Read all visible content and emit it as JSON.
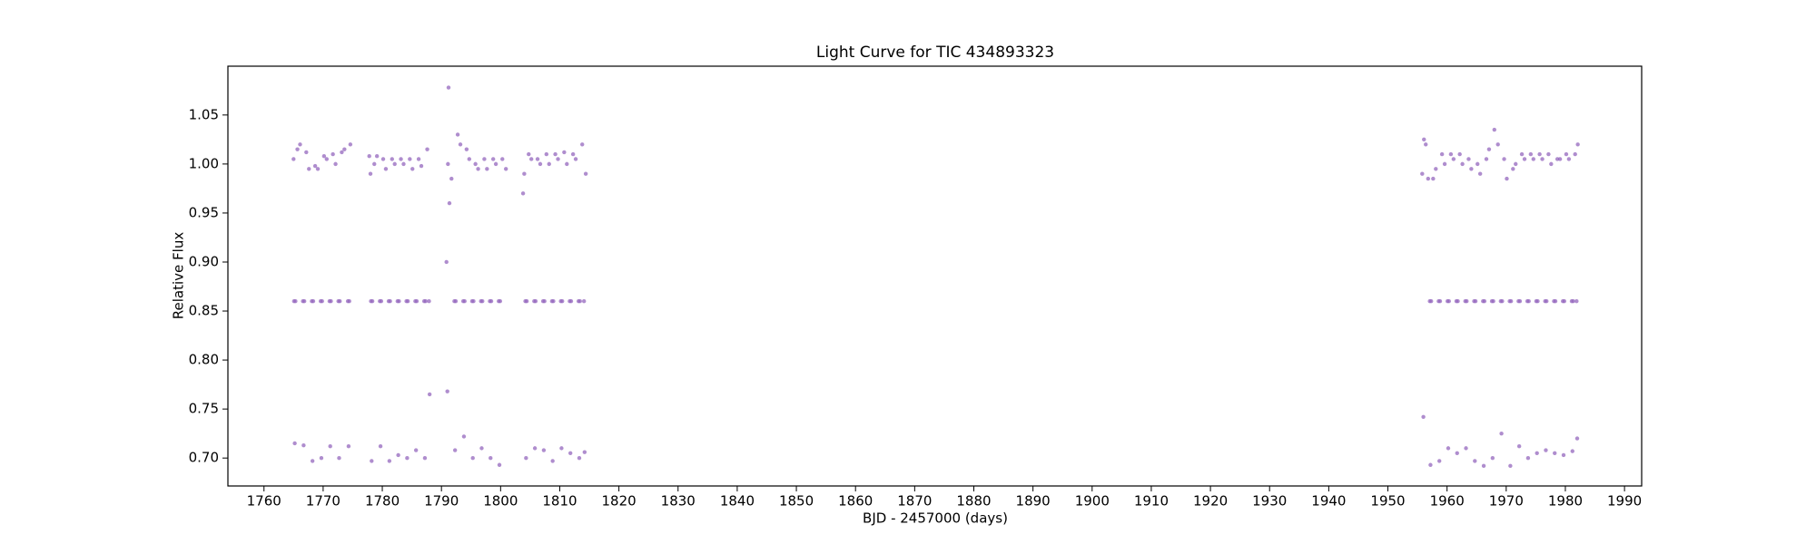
{
  "chart_data": {
    "type": "scatter",
    "title": "Light Curve for TIC 434893323",
    "x_label": "BJD - 2457000 (days)",
    "y_label": "Relative Flux",
    "color": "#9467bd",
    "xlim": [
      1753.9,
      1992.9
    ],
    "ylim": [
      0.6715,
      1.0998
    ],
    "xticks": [
      1760,
      1770,
      1780,
      1790,
      1800,
      1810,
      1820,
      1830,
      1840,
      1850,
      1860,
      1870,
      1880,
      1890,
      1900,
      1910,
      1920,
      1930,
      1940,
      1950,
      1960,
      1970,
      1980,
      1990
    ],
    "yticks": [
      {
        "value": 0.7,
        "label": "0.70"
      },
      {
        "value": 0.75,
        "label": "0.75"
      },
      {
        "value": 0.8,
        "label": "0.80"
      },
      {
        "value": 0.85,
        "label": "0.85"
      },
      {
        "value": 0.9,
        "label": "0.90"
      },
      {
        "value": 0.95,
        "label": "0.95"
      },
      {
        "value": 1.0,
        "label": "1.00"
      },
      {
        "value": 1.05,
        "label": "1.05"
      }
    ],
    "x": [
      1765.0,
      1765.08,
      1765.2,
      1765.32,
      1765.65,
      1766.1,
      1766.58,
      1766.7,
      1766.82,
      1767.15,
      1767.6,
      1768.08,
      1768.2,
      1768.32,
      1768.65,
      1769.1,
      1769.58,
      1769.7,
      1769.82,
      1770.15,
      1770.6,
      1771.08,
      1771.2,
      1771.32,
      1771.65,
      1772.1,
      1772.58,
      1772.7,
      1772.82,
      1773.15,
      1773.6,
      1774.18,
      1774.3,
      1774.42,
      1774.6,
      1777.8,
      1778.0,
      1778.08,
      1778.2,
      1778.32,
      1778.65,
      1779.1,
      1779.58,
      1779.7,
      1779.82,
      1780.15,
      1780.6,
      1781.08,
      1781.2,
      1781.32,
      1781.65,
      1782.1,
      1782.58,
      1782.7,
      1782.82,
      1783.15,
      1783.6,
      1784.08,
      1784.2,
      1784.32,
      1784.65,
      1785.1,
      1785.58,
      1785.7,
      1785.82,
      1786.15,
      1786.6,
      1787.08,
      1787.2,
      1787.32,
      1787.6,
      1787.9,
      1788.0,
      1790.85,
      1791.0,
      1791.1,
      1791.2,
      1791.35,
      1791.7,
      1792.18,
      1792.3,
      1792.42,
      1792.75,
      1793.2,
      1793.68,
      1793.8,
      1793.92,
      1794.25,
      1794.7,
      1795.18,
      1795.3,
      1795.42,
      1795.75,
      1796.2,
      1796.68,
      1796.8,
      1796.92,
      1797.25,
      1797.7,
      1798.18,
      1798.3,
      1798.42,
      1798.75,
      1799.2,
      1799.68,
      1799.8,
      1799.92,
      1800.3,
      1800.9,
      1803.8,
      1804.0,
      1804.18,
      1804.3,
      1804.42,
      1804.75,
      1805.2,
      1805.68,
      1805.8,
      1805.92,
      1806.25,
      1806.7,
      1807.18,
      1807.3,
      1807.42,
      1807.75,
      1808.2,
      1808.68,
      1808.8,
      1808.92,
      1809.25,
      1809.7,
      1810.18,
      1810.3,
      1810.42,
      1810.75,
      1811.2,
      1811.68,
      1811.8,
      1811.92,
      1812.25,
      1812.7,
      1813.18,
      1813.3,
      1813.42,
      1813.8,
      1814.1,
      1814.2,
      1814.4,
      1955.8,
      1956.0,
      1956.1,
      1956.4,
      1956.8,
      1957.08,
      1957.2,
      1957.32,
      1957.65,
      1958.1,
      1958.58,
      1958.7,
      1958.82,
      1959.15,
      1959.6,
      1960.08,
      1960.2,
      1960.32,
      1960.65,
      1961.1,
      1961.58,
      1961.7,
      1961.82,
      1962.15,
      1962.6,
      1963.08,
      1963.2,
      1963.32,
      1963.65,
      1964.1,
      1964.58,
      1964.7,
      1964.82,
      1965.15,
      1965.6,
      1966.08,
      1966.2,
      1966.32,
      1966.65,
      1967.1,
      1967.58,
      1967.7,
      1967.82,
      1968.0,
      1968.6,
      1969.08,
      1969.2,
      1969.32,
      1969.65,
      1970.1,
      1970.58,
      1970.7,
      1970.82,
      1971.15,
      1971.6,
      1972.08,
      1972.2,
      1972.32,
      1972.65,
      1973.1,
      1973.58,
      1973.7,
      1973.82,
      1974.15,
      1974.6,
      1975.08,
      1975.2,
      1975.32,
      1975.65,
      1976.1,
      1976.58,
      1976.7,
      1976.82,
      1977.15,
      1977.6,
      1978.08,
      1978.2,
      1978.32,
      1978.65,
      1979.1,
      1979.58,
      1979.7,
      1979.82,
      1980.15,
      1980.6,
      1981.08,
      1981.2,
      1981.32,
      1981.65,
      1981.9,
      1982.0,
      1982.1
    ],
    "values": [
      1.005,
      0.86,
      0.715,
      0.86,
      1.015,
      1.02,
      0.86,
      0.713,
      0.86,
      1.012,
      0.995,
      0.86,
      0.697,
      0.86,
      0.998,
      0.995,
      0.86,
      0.7,
      0.86,
      1.008,
      1.005,
      0.86,
      0.712,
      0.86,
      1.01,
      1.0,
      0.86,
      0.7,
      0.86,
      1.012,
      1.015,
      0.86,
      0.712,
      0.86,
      1.02,
      1.008,
      0.99,
      0.86,
      0.697,
      0.86,
      1.0,
      1.008,
      0.86,
      0.712,
      0.86,
      1.005,
      0.995,
      0.86,
      0.697,
      0.86,
      1.005,
      1.0,
      0.86,
      0.703,
      0.86,
      1.005,
      1.0,
      0.86,
      0.7,
      0.86,
      1.005,
      0.995,
      0.86,
      0.708,
      0.86,
      1.005,
      0.998,
      0.86,
      0.7,
      0.86,
      1.015,
      0.86,
      0.765,
      0.9,
      0.768,
      1.0,
      1.078,
      0.96,
      0.985,
      0.86,
      0.708,
      0.86,
      1.03,
      1.02,
      0.86,
      0.722,
      0.86,
      1.015,
      1.005,
      0.86,
      0.7,
      0.86,
      1.0,
      0.995,
      0.86,
      0.71,
      0.86,
      1.005,
      0.995,
      0.86,
      0.7,
      0.86,
      1.005,
      1.0,
      0.86,
      0.693,
      0.86,
      1.005,
      0.995,
      0.97,
      0.99,
      0.86,
      0.7,
      0.86,
      1.01,
      1.005,
      0.86,
      0.71,
      0.86,
      1.005,
      1.0,
      0.86,
      0.708,
      0.86,
      1.01,
      1.0,
      0.86,
      0.697,
      0.86,
      1.01,
      1.005,
      0.86,
      0.71,
      0.86,
      1.012,
      1.0,
      0.86,
      0.705,
      0.86,
      1.01,
      1.005,
      0.86,
      0.7,
      0.86,
      1.02,
      0.86,
      0.706,
      0.99,
      0.99,
      0.742,
      1.025,
      1.02,
      0.985,
      0.86,
      0.693,
      0.86,
      0.985,
      0.995,
      0.86,
      0.697,
      0.86,
      1.01,
      1.0,
      0.86,
      0.71,
      0.86,
      1.01,
      1.005,
      0.86,
      0.705,
      0.86,
      1.01,
      1.0,
      0.86,
      0.71,
      0.86,
      1.005,
      0.995,
      0.86,
      0.697,
      0.86,
      1.0,
      0.99,
      0.86,
      0.692,
      0.86,
      1.005,
      1.015,
      0.86,
      0.7,
      0.86,
      1.035,
      1.02,
      0.86,
      0.725,
      0.86,
      1.005,
      0.985,
      0.86,
      0.692,
      0.86,
      0.995,
      1.0,
      0.86,
      0.712,
      0.86,
      1.01,
      1.005,
      0.86,
      0.7,
      0.86,
      1.01,
      1.005,
      0.86,
      0.705,
      0.86,
      1.01,
      1.005,
      0.86,
      0.708,
      0.86,
      1.01,
      1.0,
      0.86,
      0.705,
      0.86,
      1.005,
      1.005,
      0.86,
      0.703,
      0.86,
      1.01,
      1.005,
      0.86,
      0.707,
      0.86,
      1.01,
      0.86,
      0.72,
      1.02
    ]
  }
}
